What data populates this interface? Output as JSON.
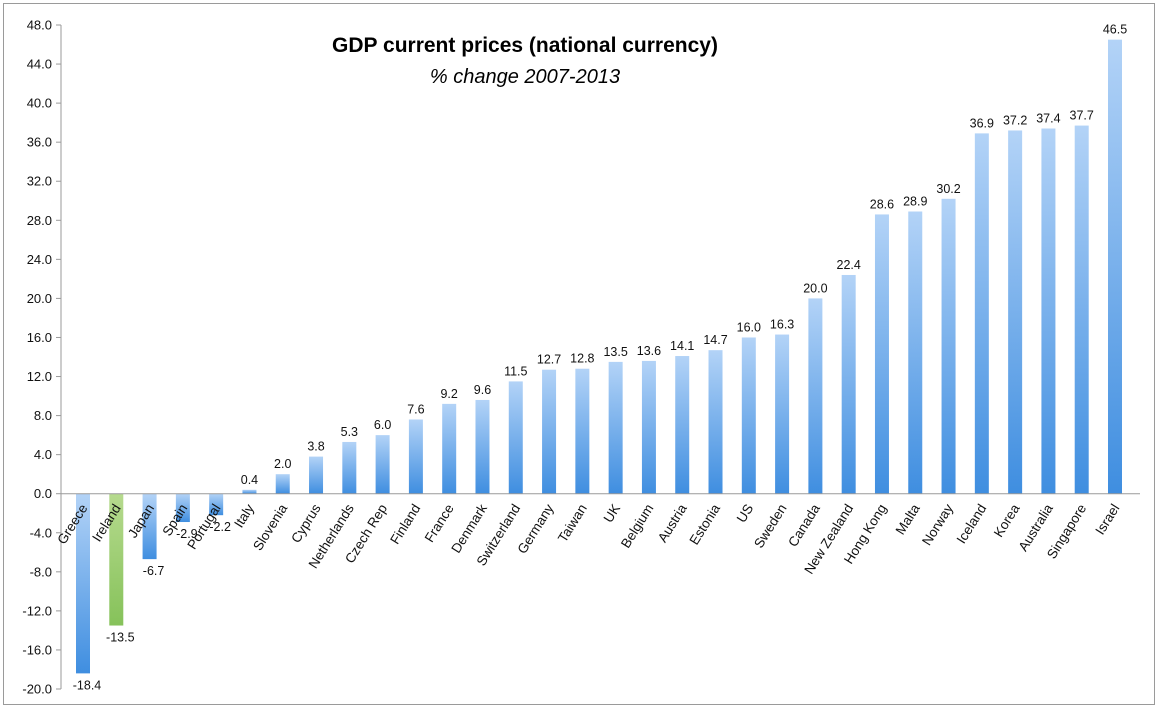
{
  "chart_data": {
    "type": "bar",
    "title": "GDP current prices (national currency)",
    "subtitle": "% change 2007-2013",
    "xlabel": "",
    "ylabel": "",
    "ylim": [
      -20,
      48
    ],
    "yticks": [
      "48.0",
      "44.0",
      "40.0",
      "36.0",
      "32.0",
      "28.0",
      "24.0",
      "20.0",
      "16.0",
      "12.0",
      "8.0",
      "4.0",
      "0.0",
      "-4.0",
      "-8.0",
      "-12.0",
      "-16.0",
      "-20.0"
    ],
    "grid": false,
    "categories": [
      "Greece",
      "Ireland",
      "Japan",
      "Spain",
      "Portugal",
      "Italy",
      "Slovenia",
      "Cyprus",
      "Netherlands",
      "Czech Rep",
      "Finland",
      "France",
      "Denmark",
      "Switzerland",
      "Germany",
      "Taiwan",
      "UK",
      "Belgium",
      "Austria",
      "Estonia",
      "US",
      "Sweden",
      "Canada",
      "New Zealand",
      "Hong Kong",
      "Malta",
      "Norway",
      "Iceland",
      "Korea",
      "Australia",
      "Singapore",
      "Israel"
    ],
    "values": [
      -18.4,
      -13.5,
      -6.7,
      -2.9,
      -2.2,
      0.4,
      2.0,
      3.8,
      5.3,
      6.0,
      7.6,
      9.2,
      9.6,
      11.5,
      12.7,
      12.8,
      13.5,
      13.6,
      14.1,
      14.7,
      16.0,
      16.3,
      20.0,
      22.4,
      28.6,
      28.9,
      30.2,
      36.9,
      37.2,
      37.4,
      37.7,
      46.5
    ],
    "value_labels": [
      "-18.4",
      "-13.5",
      "-6.7",
      "-2.9",
      "-2.2",
      "0.4",
      "2.0",
      "3.8",
      "5.3",
      "6.0",
      "7.6",
      "9.2",
      "9.6",
      "11.5",
      "12.7",
      "12.8",
      "13.5",
      "13.6",
      "14.1",
      "14.7",
      "16.0",
      "16.3",
      "20.0",
      "22.4",
      "28.6",
      "28.9",
      "30.2",
      "36.9",
      "37.2",
      "37.4",
      "37.7",
      "46.5"
    ],
    "highlight": "Ireland",
    "colors": {
      "bar_top": "#b3d3f7",
      "bar_bottom": "#3f8ee0",
      "highlight_top": "#b6da8e",
      "highlight_bottom": "#86c25a",
      "axis": "#9a9a9a"
    }
  }
}
